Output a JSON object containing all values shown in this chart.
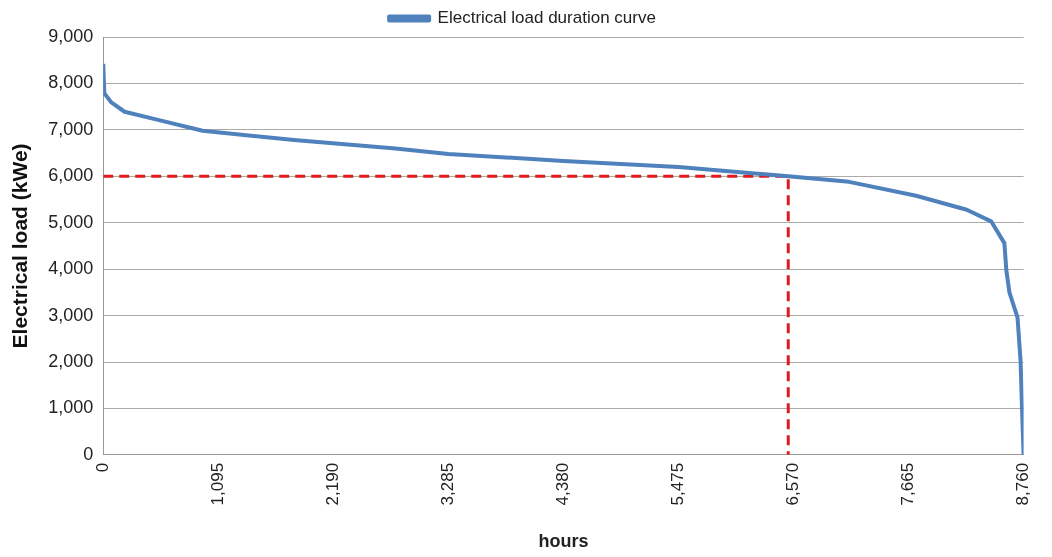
{
  "chart_data": {
    "type": "line",
    "xlabel": "hours",
    "ylabel": "Electrical load (kWe)",
    "xlim": [
      0,
      8760
    ],
    "xticks": [
      {
        "value": 0,
        "label": "0"
      },
      {
        "value": 1095,
        "label": "1,095"
      },
      {
        "value": 2190,
        "label": "2,190"
      },
      {
        "value": 3285,
        "label": "3,285"
      },
      {
        "value": 4380,
        "label": "4,380"
      },
      {
        "value": 5475,
        "label": "5,475"
      },
      {
        "value": 6570,
        "label": "6,570"
      },
      {
        "value": 7665,
        "label": "7,665"
      },
      {
        "value": 8760,
        "label": "8,760"
      }
    ],
    "ylim": [
      0,
      9000
    ],
    "yticks": [
      {
        "value": 0,
        "label": "0"
      },
      {
        "value": 1000,
        "label": "1,000"
      },
      {
        "value": 2000,
        "label": "2,000"
      },
      {
        "value": 3000,
        "label": "3,000"
      },
      {
        "value": 4000,
        "label": "4,000"
      },
      {
        "value": 5000,
        "label": "5,000"
      },
      {
        "value": 6000,
        "label": "6,000"
      },
      {
        "value": 7000,
        "label": "7,000"
      },
      {
        "value": 8000,
        "label": "8,000"
      },
      {
        "value": 9000,
        "label": "9,000"
      }
    ],
    "grid": "y",
    "legend": "top",
    "marker": "none",
    "series": [
      {
        "name": "Electrical load duration curve",
        "color": "#4f81bd",
        "line_style": "solid",
        "x": [
          0,
          10,
          77,
          203,
          531,
          946,
          1816,
          2781,
          3285,
          4380,
          5475,
          6520,
          7099,
          7737,
          8219,
          8451,
          8577,
          8596,
          8625,
          8702,
          8731,
          8745,
          8760
        ],
        "values": [
          8420,
          7790,
          7590,
          7390,
          7210,
          6980,
          6780,
          6600,
          6480,
          6330,
          6200,
          6000,
          5880,
          5580,
          5280,
          5030,
          4560,
          3970,
          3500,
          2960,
          2030,
          1000,
          0
        ]
      },
      {
        "color": "#e31a1c",
        "line_style": "dashed",
        "x": [
          0,
          6520,
          6520
        ],
        "values": [
          6000,
          6000,
          0
        ]
      }
    ]
  }
}
